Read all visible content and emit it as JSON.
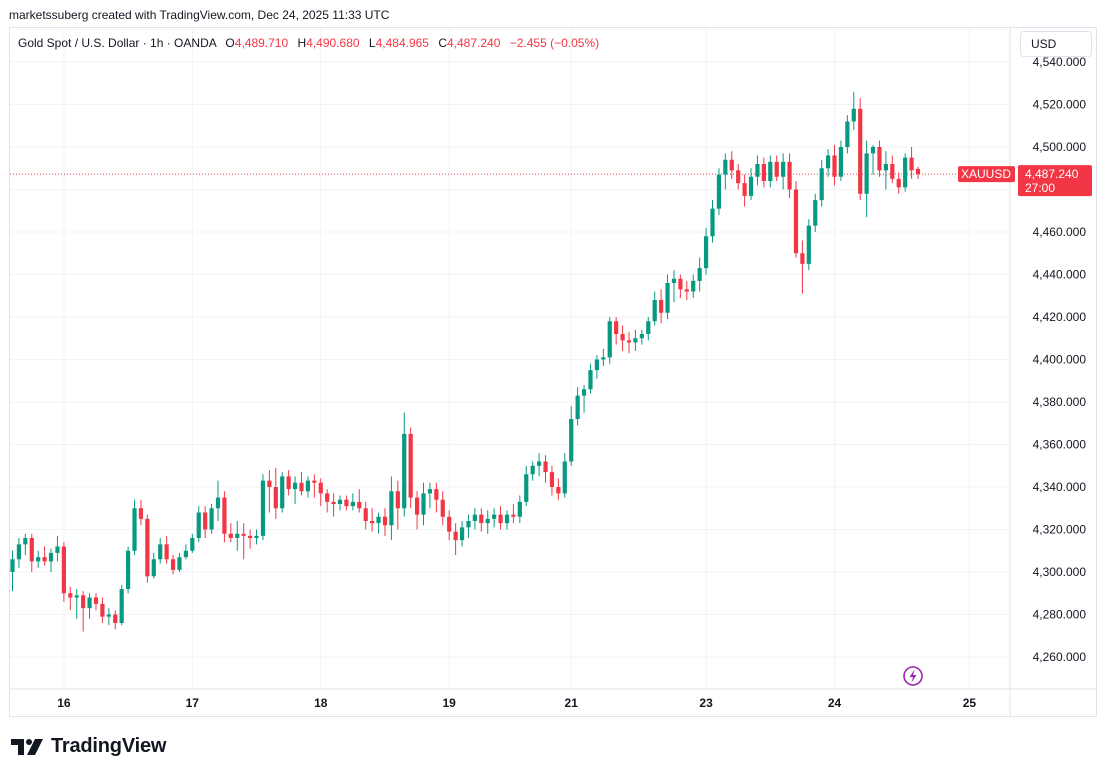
{
  "header_text": "marketssuberg created with TradingView.com, Dec 24, 2025 11:33 UTC",
  "legend": {
    "title": "Gold Spot / U.S. Dollar · 1h · OANDA",
    "open_label": "O",
    "open": "4,489.710",
    "high_label": "H",
    "high": "4,490.680",
    "low_label": "L",
    "low": "4,484.965",
    "close_label": "C",
    "close": "4,487.240",
    "change": "−2.455 (−0.05%)"
  },
  "currency_button": "USD",
  "logo_text": "TradingView",
  "colors": {
    "up": "#089981",
    "down": "#f23645",
    "grid": "#f0f3fa",
    "text": "#131722",
    "accent_purple": "#9c27b0"
  },
  "chart_data": {
    "type": "candlestick",
    "symbol": "XAUUSD",
    "ylim": [
      4250,
      4545
    ],
    "y_ticks": [
      "4,260.000",
      "4,280.000",
      "4,300.000",
      "4,320.000",
      "4,340.000",
      "4,360.000",
      "4,380.000",
      "4,400.000",
      "4,420.000",
      "4,440.000",
      "4,460.000",
      "4,480.000",
      "4,500.000",
      "4,520.000",
      "4,540.000"
    ],
    "y_tick_values": [
      4260,
      4280,
      4300,
      4320,
      4340,
      4360,
      4380,
      4400,
      4420,
      4440,
      4460,
      4480,
      4500,
      4520,
      4540
    ],
    "x_ticks": [
      "16",
      "17",
      "18",
      "19",
      "21",
      "23",
      "24",
      "25"
    ],
    "x_tick_bars": [
      8,
      28,
      48,
      68,
      87,
      108,
      128,
      149
    ],
    "last_price": 4487.24,
    "last_price_label": "4,487.240",
    "countdown": "27:00",
    "price_tag_label": "XAUUSD",
    "candles": [
      [
        4300,
        4310,
        4291,
        4306
      ],
      [
        4306,
        4316,
        4302,
        4313
      ],
      [
        4313,
        4318,
        4308,
        4316
      ],
      [
        4316,
        4318,
        4300,
        4305
      ],
      [
        4305,
        4310,
        4302,
        4307
      ],
      [
        4307,
        4312,
        4303,
        4305
      ],
      [
        4305,
        4311,
        4300,
        4309
      ],
      [
        4309,
        4317,
        4305,
        4312
      ],
      [
        4312,
        4314,
        4286,
        4290
      ],
      [
        4290,
        4293,
        4282,
        4288
      ],
      [
        4288,
        4292,
        4278,
        4289
      ],
      [
        4289,
        4291,
        4272,
        4283
      ],
      [
        4283,
        4290,
        4278,
        4288
      ],
      [
        4288,
        4290,
        4282,
        4285
      ],
      [
        4285,
        4288,
        4276,
        4279
      ],
      [
        4279,
        4283,
        4275,
        4280
      ],
      [
        4280,
        4282,
        4273,
        4276
      ],
      [
        4276,
        4294,
        4275,
        4292
      ],
      [
        4292,
        4312,
        4290,
        4310
      ],
      [
        4310,
        4334,
        4308,
        4330
      ],
      [
        4330,
        4334,
        4322,
        4325
      ],
      [
        4325,
        4327,
        4295,
        4298
      ],
      [
        4298,
        4309,
        4297,
        4306
      ],
      [
        4306,
        4316,
        4304,
        4313
      ],
      [
        4313,
        4317,
        4304,
        4306
      ],
      [
        4306,
        4308,
        4299,
        4301
      ],
      [
        4301,
        4309,
        4300,
        4307
      ],
      [
        4307,
        4313,
        4306,
        4310
      ],
      [
        4310,
        4318,
        4309,
        4316
      ],
      [
        4316,
        4331,
        4314,
        4328
      ],
      [
        4328,
        4331,
        4316,
        4320
      ],
      [
        4320,
        4332,
        4318,
        4330
      ],
      [
        4330,
        4343,
        4324,
        4335
      ],
      [
        4335,
        4338,
        4314,
        4318
      ],
      [
        4318,
        4323,
        4314,
        4316
      ],
      [
        4316,
        4324,
        4310,
        4318
      ],
      [
        4318,
        4323,
        4306,
        4317
      ],
      [
        4317,
        4320,
        4311,
        4316
      ],
      [
        4316,
        4320,
        4313,
        4317
      ],
      [
        4317,
        4346,
        4315,
        4343
      ],
      [
        4343,
        4348,
        4328,
        4340
      ],
      [
        4340,
        4349,
        4325,
        4330
      ],
      [
        4330,
        4347,
        4328,
        4345
      ],
      [
        4345,
        4348,
        4336,
        4339
      ],
      [
        4339,
        4345,
        4332,
        4342
      ],
      [
        4342,
        4347,
        4336,
        4338
      ],
      [
        4338,
        4345,
        4335,
        4343
      ],
      [
        4343,
        4346,
        4335,
        4342
      ],
      [
        4342,
        4344,
        4331,
        4337
      ],
      [
        4337,
        4339,
        4328,
        4333
      ],
      [
        4333,
        4337,
        4326,
        4332
      ],
      [
        4332,
        4336,
        4329,
        4334
      ],
      [
        4334,
        4336,
        4329,
        4331
      ],
      [
        4331,
        4337,
        4329,
        4333
      ],
      [
        4333,
        4339,
        4328,
        4330
      ],
      [
        4330,
        4333,
        4320,
        4324
      ],
      [
        4324,
        4330,
        4319,
        4323
      ],
      [
        4323,
        4328,
        4318,
        4326
      ],
      [
        4326,
        4330,
        4317,
        4322
      ],
      [
        4322,
        4345,
        4315,
        4338
      ],
      [
        4338,
        4343,
        4320,
        4330
      ],
      [
        4330,
        4375,
        4326,
        4365
      ],
      [
        4365,
        4368,
        4330,
        4335
      ],
      [
        4335,
        4338,
        4320,
        4327
      ],
      [
        4327,
        4342,
        4322,
        4337
      ],
      [
        4337,
        4342,
        4330,
        4339
      ],
      [
        4339,
        4342,
        4328,
        4334
      ],
      [
        4334,
        4338,
        4322,
        4326
      ],
      [
        4326,
        4329,
        4315,
        4319
      ],
      [
        4319,
        4323,
        4308,
        4315
      ],
      [
        4315,
        4324,
        4312,
        4321
      ],
      [
        4321,
        4327,
        4316,
        4324
      ],
      [
        4324,
        4330,
        4320,
        4327
      ],
      [
        4327,
        4330,
        4319,
        4323
      ],
      [
        4323,
        4329,
        4318,
        4325
      ],
      [
        4325,
        4330,
        4321,
        4327
      ],
      [
        4327,
        4331,
        4320,
        4323
      ],
      [
        4323,
        4329,
        4320,
        4327
      ],
      [
        4327,
        4332,
        4323,
        4326
      ],
      [
        4326,
        4336,
        4323,
        4333
      ],
      [
        4333,
        4350,
        4331,
        4346
      ],
      [
        4346,
        4352,
        4343,
        4350
      ],
      [
        4350,
        4356,
        4345,
        4352
      ],
      [
        4352,
        4355,
        4342,
        4347
      ],
      [
        4347,
        4350,
        4336,
        4340
      ],
      [
        4340,
        4344,
        4334,
        4337
      ],
      [
        4337,
        4356,
        4335,
        4352
      ],
      [
        4352,
        4378,
        4350,
        4372
      ],
      [
        4372,
        4387,
        4369,
        4383
      ],
      [
        4383,
        4388,
        4375,
        4386
      ],
      [
        4386,
        4398,
        4384,
        4395
      ],
      [
        4395,
        4402,
        4391,
        4400
      ],
      [
        4400,
        4405,
        4397,
        4401
      ],
      [
        4401,
        4420,
        4398,
        4418
      ],
      [
        4418,
        4420,
        4407,
        4412
      ],
      [
        4412,
        4416,
        4404,
        4409
      ],
      [
        4409,
        4413,
        4403,
        4408
      ],
      [
        4408,
        4414,
        4404,
        4410
      ],
      [
        4410,
        4414,
        4407,
        4412
      ],
      [
        4412,
        4420,
        4409,
        4418
      ],
      [
        4418,
        4432,
        4416,
        4428
      ],
      [
        4428,
        4433,
        4417,
        4422
      ],
      [
        4422,
        4440,
        4419,
        4436
      ],
      [
        4436,
        4442,
        4427,
        4438
      ],
      [
        4438,
        4440,
        4429,
        4433
      ],
      [
        4433,
        4437,
        4428,
        4432
      ],
      [
        4432,
        4440,
        4429,
        4437
      ],
      [
        4437,
        4448,
        4432,
        4443
      ],
      [
        4443,
        4462,
        4440,
        4458
      ],
      [
        4458,
        4475,
        4455,
        4471
      ],
      [
        4471,
        4490,
        4468,
        4487
      ],
      [
        4487,
        4497,
        4480,
        4494
      ],
      [
        4494,
        4498,
        4485,
        4489
      ],
      [
        4489,
        4492,
        4480,
        4483
      ],
      [
        4483,
        4487,
        4472,
        4477
      ],
      [
        4477,
        4490,
        4475,
        4486
      ],
      [
        4486,
        4496,
        4482,
        4492
      ],
      [
        4492,
        4495,
        4481,
        4484
      ],
      [
        4484,
        4496,
        4481,
        4493
      ],
      [
        4493,
        4496,
        4484,
        4486
      ],
      [
        4486,
        4497,
        4480,
        4493
      ],
      [
        4493,
        4497,
        4476,
        4480
      ],
      [
        4480,
        4484,
        4448,
        4450
      ],
      [
        4450,
        4456,
        4431,
        4445
      ],
      [
        4445,
        4466,
        4442,
        4463
      ],
      [
        4463,
        4478,
        4460,
        4475
      ],
      [
        4475,
        4494,
        4472,
        4490
      ],
      [
        4490,
        4499,
        4486,
        4496
      ],
      [
        4496,
        4501,
        4482,
        4486
      ],
      [
        4486,
        4503,
        4484,
        4500
      ],
      [
        4500,
        4515,
        4497,
        4512
      ],
      [
        4512,
        4526,
        4508,
        4518
      ],
      [
        4518,
        4523,
        4475,
        4478
      ],
      [
        4478,
        4503,
        4467,
        4497
      ],
      [
        4497,
        4501,
        4487,
        4500
      ],
      [
        4500,
        4503,
        4486,
        4489
      ],
      [
        4489,
        4498,
        4480,
        4492
      ],
      [
        4492,
        4496,
        4483,
        4485
      ],
      [
        4485,
        4488,
        4478,
        4481
      ],
      [
        4481,
        4497,
        4479,
        4495
      ],
      [
        4495,
        4500,
        4485,
        4489
      ],
      [
        4489.71,
        4490.68,
        4484.965,
        4487.24
      ]
    ]
  }
}
